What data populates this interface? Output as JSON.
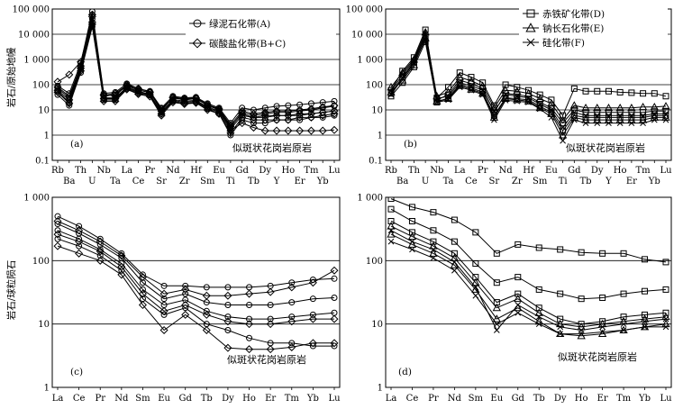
{
  "figure": {
    "ylabel_top": "岩石/原始地幔",
    "ylabel_bottom": "岩石/球粒陨石",
    "protolith_label": "似斑状花岗岩原岩"
  },
  "chart_data": [
    {
      "id": "a",
      "type": "line",
      "panel_label": "(a)",
      "scale": "log",
      "ylim": [
        0.1,
        100000
      ],
      "yticks": [
        "0.1",
        "1",
        "10",
        "100",
        "1 000",
        "10 000",
        "100 000"
      ],
      "x": [
        "Rb",
        "Ba",
        "Th",
        "U",
        "Nb",
        "Ta",
        "La",
        "Ce",
        "Pr",
        "Sr",
        "Nd",
        "Zr",
        "Hf",
        "Sm",
        "Eu",
        "Ti",
        "Gd",
        "Tb",
        "Dy",
        "Y",
        "Ho",
        "Er",
        "Tm",
        "Yb",
        "Lu"
      ],
      "legend": [
        {
          "name": "绿泥石化带(A)",
          "marker": "circle"
        },
        {
          "name": "碳酸盐化带(B+C)",
          "marker": "diamond"
        }
      ],
      "series": [
        {
          "name": "绿泥石化带(A)",
          "marker": "circle",
          "values": [
            70,
            30,
            500,
            60000,
            35,
            40,
            90,
            60,
            50,
            10,
            30,
            25,
            28,
            15,
            10,
            2,
            8,
            6,
            7,
            8,
            8,
            9,
            10,
            12,
            14
          ]
        },
        {
          "name": "绿泥石化带(A)",
          "marker": "circle",
          "values": [
            55,
            20,
            400,
            40000,
            30,
            30,
            80,
            55,
            42,
            8,
            26,
            22,
            24,
            13,
            9,
            1.8,
            6,
            5,
            5,
            6,
            6,
            6,
            7,
            8,
            9
          ]
        },
        {
          "name": "绿泥石化带(A)",
          "marker": "circle",
          "values": [
            90,
            45,
            700,
            80000,
            45,
            50,
            110,
            70,
            55,
            12,
            35,
            30,
            32,
            18,
            12,
            3,
            12,
            10,
            12,
            14,
            15,
            16,
            18,
            20,
            22
          ]
        },
        {
          "name": "绿泥石化带(A)",
          "marker": "circle",
          "values": [
            40,
            15,
            300,
            20000,
            25,
            25,
            70,
            45,
            38,
            7,
            22,
            18,
            20,
            11,
            7,
            1,
            4,
            3,
            3,
            4,
            4,
            4,
            5,
            5,
            6
          ]
        },
        {
          "name": "碳酸盐化带(B+C)",
          "marker": "diamond",
          "values": [
            130,
            250,
            800,
            50000,
            40,
            35,
            100,
            70,
            52,
            9,
            32,
            28,
            30,
            16,
            11,
            2.5,
            9,
            7,
            8,
            9,
            9,
            10,
            11,
            13,
            15
          ]
        },
        {
          "name": "碳酸盐化带(B+C)",
          "marker": "diamond",
          "values": [
            60,
            25,
            450,
            30000,
            28,
            28,
            75,
            50,
            40,
            7,
            24,
            20,
            22,
            12,
            8,
            1.5,
            3,
            2,
            1.5,
            1.5,
            1.5,
            1.5,
            1.5,
            1.5,
            1.6
          ]
        },
        {
          "name": "碳酸盐化带(B+C)",
          "marker": "diamond",
          "values": [
            80,
            35,
            550,
            60000,
            38,
            45,
            95,
            62,
            48,
            11,
            30,
            26,
            28,
            16,
            10,
            2.2,
            7,
            5,
            6,
            6,
            6,
            7,
            7,
            8,
            9
          ]
        },
        {
          "name": "碳酸盐化带(B+C)",
          "marker": "diamond",
          "values": [
            50,
            18,
            350,
            25000,
            22,
            22,
            65,
            42,
            34,
            6,
            20,
            17,
            19,
            10,
            7,
            1.2,
            5,
            4,
            4,
            4,
            4,
            5,
            5,
            6,
            7
          ]
        }
      ]
    },
    {
      "id": "b",
      "type": "line",
      "panel_label": "(b)",
      "scale": "log",
      "ylim": [
        0.1,
        100000
      ],
      "yticks": [
        "0.1",
        "1",
        "10",
        "100",
        "1 000",
        "10 000",
        "100 000"
      ],
      "x": [
        "Rb",
        "Ba",
        "Th",
        "U",
        "Nb",
        "Ta",
        "La",
        "Ce",
        "Pr",
        "Sr",
        "Nd",
        "Zr",
        "Hf",
        "Sm",
        "Eu",
        "Ti",
        "Gd",
        "Tb",
        "Dy",
        "Y",
        "Ho",
        "Er",
        "Tm",
        "Yb",
        "Lu"
      ],
      "legend": [
        {
          "name": "赤铁矿化带(D)",
          "marker": "square"
        },
        {
          "name": "钠长石化带(E)",
          "marker": "triangle"
        },
        {
          "name": "硅化带(F)",
          "marker": "x"
        }
      ],
      "series": [
        {
          "name": "赤铁矿化带(D)",
          "marker": "square",
          "values": [
            60,
            350,
            1200,
            15000,
            30,
            80,
            300,
            200,
            120,
            15,
            100,
            80,
            60,
            40,
            25,
            6,
            70,
            55,
            55,
            55,
            50,
            48,
            45,
            45,
            35
          ]
        },
        {
          "name": "赤铁矿化带(D)",
          "marker": "square",
          "values": [
            45,
            200,
            800,
            8000,
            25,
            40,
            150,
            110,
            70,
            8,
            45,
            40,
            35,
            20,
            12,
            3,
            10,
            8,
            8,
            8,
            8,
            8,
            8,
            9,
            9
          ]
        },
        {
          "name": "赤铁矿化带(D)",
          "marker": "square",
          "values": [
            35,
            120,
            500,
            5000,
            20,
            30,
            100,
            75,
            50,
            6,
            30,
            28,
            25,
            14,
            8,
            1.5,
            6,
            5,
            5,
            5,
            5,
            5,
            5,
            6,
            6
          ]
        },
        {
          "name": "钠长石化带(E)",
          "marker": "triangle",
          "values": [
            80,
            300,
            1000,
            12000,
            35,
            50,
            200,
            140,
            90,
            12,
            60,
            55,
            45,
            28,
            18,
            4,
            15,
            12,
            12,
            12,
            12,
            12,
            13,
            13,
            14
          ]
        },
        {
          "name": "钠长石化带(E)",
          "marker": "triangle",
          "values": [
            50,
            150,
            600,
            7000,
            22,
            28,
            90,
            65,
            45,
            5,
            28,
            25,
            22,
            12,
            7,
            1,
            5,
            4,
            4,
            4,
            4,
            4,
            4,
            5,
            5
          ]
        },
        {
          "name": "硅化带(F)",
          "marker": "x",
          "values": [
            55,
            250,
            900,
            10000,
            28,
            35,
            120,
            90,
            60,
            9,
            40,
            35,
            30,
            17,
            10,
            2,
            8,
            6,
            6,
            6,
            6,
            6,
            6,
            7,
            7
          ]
        },
        {
          "name": "硅化带(F)",
          "marker": "x",
          "values": [
            40,
            180,
            700,
            6000,
            20,
            25,
            80,
            60,
            40,
            4,
            24,
            22,
            20,
            11,
            5,
            0.6,
            4,
            3,
            3,
            3,
            3,
            3,
            3,
            4,
            4
          ]
        }
      ]
    },
    {
      "id": "c",
      "type": "line",
      "panel_label": "(c)",
      "scale": "log",
      "ylim": [
        1,
        1000
      ],
      "yticks": [
        "1",
        "10",
        "100",
        "1 000"
      ],
      "x": [
        "La",
        "Ce",
        "Pr",
        "Nd",
        "Sm",
        "Eu",
        "Gd",
        "Tb",
        "Dy",
        "Ho",
        "Er",
        "Tm",
        "Yb",
        "Lu"
      ],
      "series": [
        {
          "name": "绿泥石化带(A)",
          "marker": "circle",
          "values": [
            500,
            350,
            220,
            130,
            60,
            40,
            40,
            38,
            38,
            38,
            40,
            45,
            50,
            52
          ]
        },
        {
          "name": "绿泥石化带(A)",
          "marker": "circle",
          "values": [
            380,
            270,
            180,
            110,
            45,
            25,
            30,
            22,
            20,
            20,
            20,
            22,
            25,
            26
          ]
        },
        {
          "name": "绿泥石化带(A)",
          "marker": "circle",
          "values": [
            300,
            220,
            150,
            90,
            35,
            20,
            24,
            16,
            13,
            12,
            12,
            13,
            14,
            15
          ]
        },
        {
          "name": "绿泥石化带(A)",
          "marker": "circle",
          "values": [
            220,
            170,
            120,
            70,
            25,
            14,
            18,
            10,
            8,
            6,
            5,
            5,
            4.5,
            4.5
          ]
        },
        {
          "name": "碳酸盐化带(B+C)",
          "marker": "diamond",
          "values": [
            420,
            300,
            200,
            120,
            55,
            30,
            35,
            28,
            28,
            30,
            32,
            38,
            45,
            70
          ]
        },
        {
          "name": "碳酸盐化带(B+C)",
          "marker": "diamond",
          "values": [
            260,
            200,
            140,
            80,
            30,
            16,
            20,
            14,
            11,
            10,
            10,
            11,
            12,
            12
          ]
        },
        {
          "name": "碳酸盐化带(B+C)",
          "marker": "diamond",
          "values": [
            170,
            130,
            100,
            60,
            20,
            8,
            14,
            8,
            4.2,
            4,
            4,
            4.3,
            5,
            5
          ]
        }
      ]
    },
    {
      "id": "d",
      "type": "line",
      "panel_label": "(d)",
      "scale": "log",
      "ylim": [
        1,
        1000
      ],
      "yticks": [
        "1",
        "10",
        "100",
        "1 000"
      ],
      "x": [
        "La",
        "Ce",
        "Pr",
        "Nd",
        "Sm",
        "Eu",
        "Gd",
        "Tb",
        "Dy",
        "Ho",
        "Er",
        "Tm",
        "Yb",
        "Lu"
      ],
      "series": [
        {
          "name": "赤铁矿化带(D)",
          "marker": "square",
          "values": [
            950,
            700,
            580,
            440,
            280,
            130,
            180,
            160,
            150,
            135,
            130,
            130,
            105,
            95
          ]
        },
        {
          "name": "赤铁矿化带(D)",
          "marker": "square",
          "values": [
            650,
            420,
            300,
            200,
            90,
            45,
            55,
            35,
            30,
            25,
            26,
            30,
            33,
            35
          ]
        },
        {
          "name": "赤铁矿化带(D)",
          "marker": "square",
          "values": [
            420,
            280,
            200,
            130,
            55,
            22,
            30,
            18,
            12,
            10,
            11,
            13,
            14,
            15
          ]
        },
        {
          "name": "钠长石化带(E)",
          "marker": "triangle",
          "values": [
            350,
            240,
            170,
            110,
            45,
            18,
            25,
            15,
            10,
            9,
            10,
            11,
            12,
            13
          ]
        },
        {
          "name": "钠长石化带(E)",
          "marker": "triangle",
          "values": [
            260,
            180,
            130,
            85,
            35,
            12,
            18,
            11,
            7,
            6.5,
            7,
            8,
            9,
            10
          ]
        },
        {
          "name": "硅化带(F)",
          "marker": "x",
          "values": [
            300,
            200,
            150,
            95,
            38,
            8,
            20,
            13,
            9,
            8,
            9,
            10,
            11,
            12
          ]
        },
        {
          "name": "硅化带(F)",
          "marker": "x",
          "values": [
            200,
            150,
            110,
            70,
            28,
            10,
            15,
            10,
            7,
            7,
            7.5,
            8,
            9,
            9
          ]
        }
      ]
    }
  ]
}
